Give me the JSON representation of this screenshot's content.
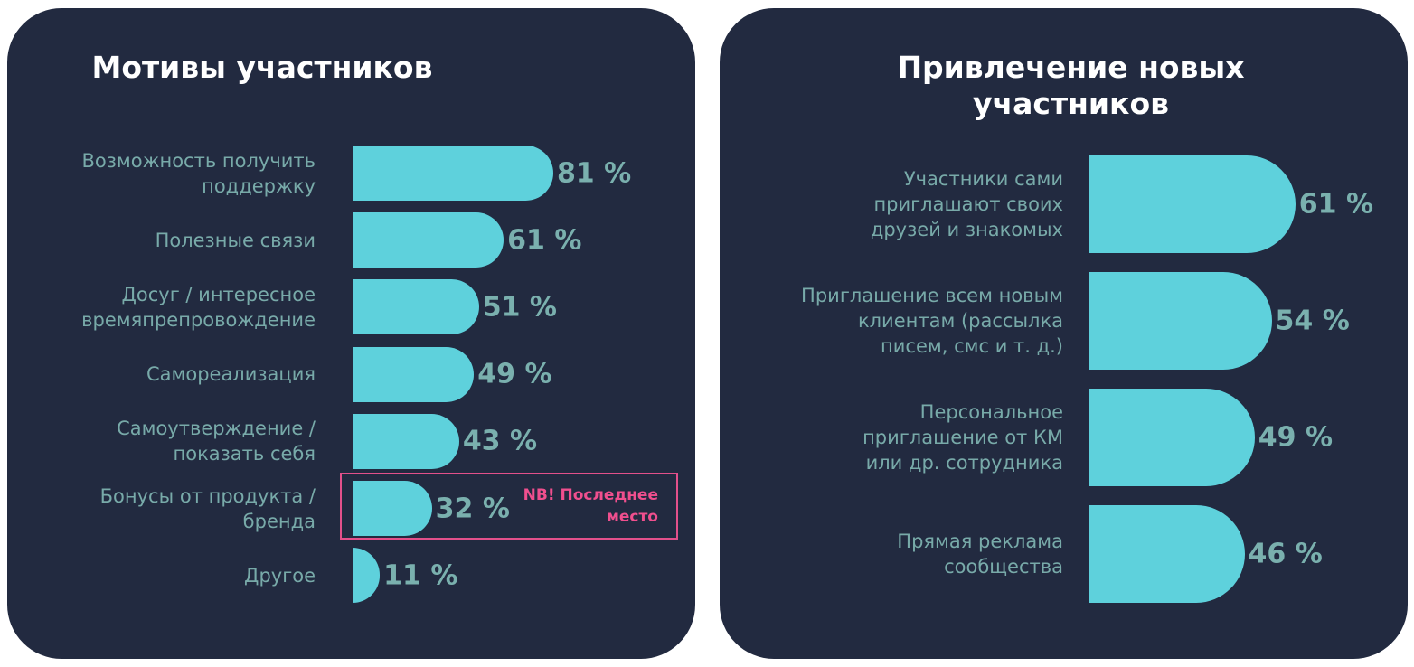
{
  "chart_data": [
    {
      "type": "bar",
      "orientation": "horizontal",
      "title": "Мотивы участников",
      "categories": [
        "Возможность получить\nподдержку",
        "Полезные связи",
        "Досуг / интересное\nвремяпрепровождение",
        "Самореализация",
        "Самоутверждение /\nпоказать себя",
        "Бонусы от продукта /\nбренда",
        "Другое"
      ],
      "values": [
        81,
        61,
        51,
        49,
        43,
        32,
        11
      ],
      "value_labels": [
        "81 %",
        "61 %",
        "51 %",
        "49 %",
        "43 %",
        "32 %",
        "11 %"
      ],
      "unit": "%",
      "annotation": {
        "category_index": 5,
        "text": "NB! Последнее\nместо",
        "color": "#f04f8e"
      },
      "bar_color": "#5ed1dc"
    },
    {
      "type": "bar",
      "orientation": "horizontal",
      "title": "Привлечение новых\nучастников",
      "categories": [
        "Участники сами\nприглашают своих\nдрузей и знакомых",
        "Приглашение всем новым\nклиентам (рассылка\nписем, смс и т. д.)",
        "Персональное\nприглашение от КМ\nили др. сотрудника",
        "Прямая реклама\nсообщества"
      ],
      "values": [
        61,
        54,
        49,
        46
      ],
      "value_labels": [
        "61 %",
        "54 %",
        "49 %",
        "46 %"
      ],
      "unit": "%",
      "bar_color": "#5ed1dc"
    }
  ],
  "colors": {
    "panel_background": "#222a40",
    "bar": "#5ed1dc",
    "category_text": "#78aaa9",
    "value_text": "#7ab0ae",
    "highlight": "#e3508b"
  }
}
